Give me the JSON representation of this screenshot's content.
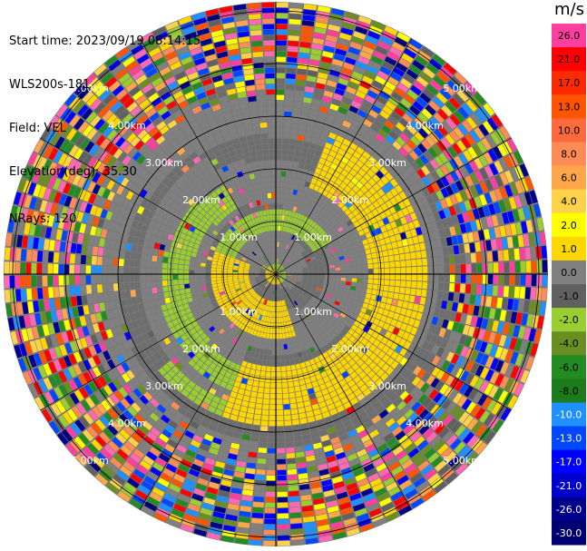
{
  "header": {
    "start_time": "Start time: 2023/09/19 08:14:15",
    "instrument": "WLS200s-181",
    "field": "Field: VEL",
    "elevation": "Elevation(deg): 35.30",
    "nrays": "NRays: 120"
  },
  "colorbar": {
    "unit": "m/s",
    "ticks": [
      "26.0",
      "21.0",
      "17.0",
      "13.0",
      "10.0",
      "8.0",
      "6.0",
      "4.0",
      "2.0",
      "1.0",
      "0.0",
      "-1.0",
      "-2.0",
      "-4.0",
      "-6.0",
      "-8.0",
      "-10.0",
      "-13.0",
      "-17.0",
      "-21.0",
      "-26.0",
      "-30.0"
    ],
    "colors": [
      "#ff3fa0",
      "#ff0000",
      "#ff2a00",
      "#ff5500",
      "#ff6a3c",
      "#ff8c55",
      "#ffa54a",
      "#ffd24a",
      "#ffff00",
      "#ffd700",
      "#808080",
      "#606060",
      "#9acd32",
      "#6b8e23",
      "#228b22",
      "#1c7c1c",
      "#1e90ff",
      "#0047ff",
      "#0000ff",
      "#0000cd",
      "#00008b",
      "#000070"
    ]
  },
  "range_labels": [
    "1.00km",
    "2.00km",
    "3.00km",
    "4.00km",
    "5.00km"
  ]
}
